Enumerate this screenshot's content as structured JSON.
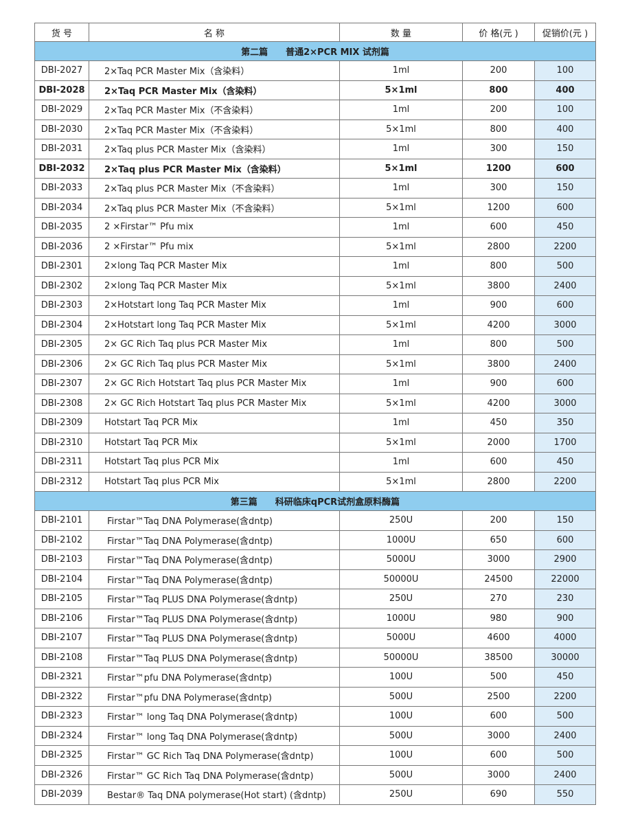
{
  "header": [
    "货 号",
    "名 称",
    "数 量",
    "价 格(元 )",
    "促销价(元 )"
  ],
  "sections": [
    {
      "title": "第二篇　　普通2×PCR MIX 试剂篇",
      "bold_rows": [
        1,
        5
      ],
      "rows": [
        [
          "DBI-2027",
          "2×Taq PCR Master Mix（含染料）",
          "1ml",
          200,
          100
        ],
        [
          "DBI-2028",
          "2×Taq PCR Master Mix（含染料）",
          "5×1ml",
          800,
          400
        ],
        [
          "DBI-2029",
          "2×Taq PCR Master Mix（不含染料）",
          "1ml",
          200,
          100
        ],
        [
          "DBI-2030",
          "2×Taq PCR Master Mix（不含染料）",
          "5×1ml",
          800,
          400
        ],
        [
          "DBI-2031",
          "2×Taq plus PCR Master Mix（含染料）",
          "1ml",
          300,
          150
        ],
        [
          "DBI-2032",
          "2×Taq plus PCR Master Mix（含染料）",
          "5×1ml",
          1200,
          600
        ],
        [
          "DBI-2033",
          "2×Taq plus PCR Master Mix（不含染料）",
          "1ml",
          300,
          150
        ],
        [
          "DBI-2034",
          "2×Taq plus PCR Master Mix（不含染料）",
          "5×1ml",
          1200,
          600
        ],
        [
          "DBI-2035",
          "2 ×Firstar™ Pfu mix",
          "1ml",
          600,
          450
        ],
        [
          "DBI-2036",
          "2 ×Firstar™ Pfu mix",
          "5×1ml",
          2800,
          2200
        ],
        [
          "DBI-2301",
          "2×long Taq PCR Master Mix",
          "1ml",
          800,
          500
        ],
        [
          "DBI-2302",
          "2×long Taq PCR Master Mix",
          "5×1ml",
          3800,
          2400
        ],
        [
          "DBI-2303",
          "2×Hotstart long Taq PCR Master Mix",
          "1ml",
          900,
          600
        ],
        [
          "DBI-2304",
          "2×Hotstart long Taq PCR Master Mix",
          "5×1ml",
          4200,
          3000
        ],
        [
          "DBI-2305",
          "2× GC Rich Taq plus PCR Master Mix",
          "1ml",
          800,
          500
        ],
        [
          "DBI-2306",
          "2× GC Rich Taq plus PCR Master Mix",
          "5×1ml",
          3800,
          2400
        ],
        [
          "DBI-2307",
          "2× GC Rich Hotstart Taq plus PCR Master Mix",
          "1ml",
          900,
          600
        ],
        [
          "DBI-2308",
          "2× GC Rich Hotstart Taq plus PCR Master Mix",
          "5×1ml",
          4200,
          3000
        ],
        [
          "DBI-2309",
          "Hotstart Taq PCR Mix",
          "1ml",
          450,
          350
        ],
        [
          "DBI-2310",
          "Hotstart Taq PCR Mix",
          "5×1ml",
          2000,
          1700
        ],
        [
          "DBI-2311",
          "Hotstart Taq plus PCR Mix",
          "1ml",
          600,
          450
        ],
        [
          "DBI-2312",
          "Hotstart Taq plus PCR Mix",
          "5×1ml",
          2800,
          2200
        ]
      ]
    },
    {
      "title": "第三篇　　科研临床qPCR试剂盒原料酶篇",
      "bold_rows": [],
      "rows": [
        [
          "DBI-2101",
          "Firstar™Taq DNA Polymerase(含dntp)",
          "250U",
          200,
          150
        ],
        [
          "DBI-2102",
          "Firstar™Taq DNA Polymerase(含dntp)",
          "1000U",
          650,
          600
        ],
        [
          "DBI-2103",
          "Firstar™Taq DNA Polymerase(含dntp)",
          "5000U",
          3000,
          2900
        ],
        [
          "DBI-2104",
          "Firstar™Taq DNA Polymerase(含dntp)",
          "50000U",
          24500,
          22000
        ],
        [
          "DBI-2105",
          "Firstar™Taq PLUS DNA Polymerase(含dntp)",
          "250U",
          270,
          230
        ],
        [
          "DBI-2106",
          "Firstar™Taq PLUS DNA Polymerase(含dntp)",
          "1000U",
          980,
          900
        ],
        [
          "DBI-2107",
          "Firstar™Taq PLUS DNA Polymerase(含dntp)",
          "5000U",
          4600,
          4000
        ],
        [
          "DBI-2108",
          "Firstar™Taq PLUS DNA Polymerase(含dntp)",
          "50000U",
          38500,
          30000
        ],
        [
          "DBI-2321",
          "Firstar™pfu DNA Polymerase(含dntp)",
          "100U",
          500,
          450
        ],
        [
          "DBI-2322",
          "Firstar™pfu DNA Polymerase(含dntp)",
          "500U",
          2500,
          2200
        ],
        [
          "DBI-2323",
          "Firstar™ long Taq DNA Polymerase(含dntp)",
          "100U",
          600,
          500
        ],
        [
          "DBI-2324",
          "Firstar™ long Taq DNA Polymerase(含dntp)",
          "500U",
          3000,
          2400
        ],
        [
          "DBI-2325",
          "Firstar™ GC Rich Taq DNA Polymerase(含dntp)",
          "100U",
          600,
          500
        ],
        [
          "DBI-2326",
          "Firstar™ GC Rich Taq DNA Polymerase(含dntp)",
          "500U",
          3000,
          2400
        ],
        [
          "DBI-2039",
          "Bestar® Taq DNA polymerase(Hot start) (含dntp)",
          "250U",
          690,
          550
        ]
      ]
    }
  ]
}
